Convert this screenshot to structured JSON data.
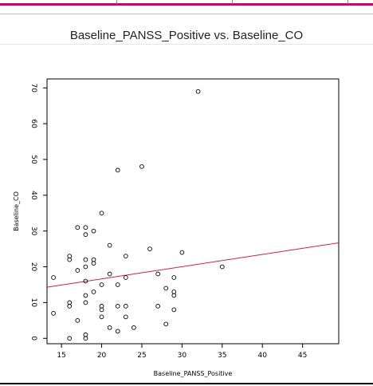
{
  "page": {
    "title": "Baseline_PANSS_Positive vs. Baseline_CO",
    "accent_color": "#cc0077"
  },
  "chart_data": {
    "type": "scatter",
    "title": "",
    "xlabel": "Baseline_PANSS_Positive",
    "ylabel": "Baseline_CO",
    "xlim": [
      13.2,
      49.5
    ],
    "ylim": [
      -1.5,
      72.5
    ],
    "x_ticks": [
      15,
      20,
      25,
      30,
      35,
      40,
      45
    ],
    "y_ticks": [
      0,
      10,
      20,
      30,
      40,
      50,
      60,
      70
    ],
    "grid": false,
    "point_color": "#000000",
    "fit_line_color": "#cc2244",
    "fit_line": {
      "x": [
        13.2,
        49.5
      ],
      "y": [
        14.3,
        26.7
      ]
    },
    "points": [
      {
        "x": 14,
        "y": 17
      },
      {
        "x": 14,
        "y": 7
      },
      {
        "x": 16,
        "y": 0
      },
      {
        "x": 16,
        "y": 9
      },
      {
        "x": 16,
        "y": 10
      },
      {
        "x": 16,
        "y": 22
      },
      {
        "x": 16,
        "y": 23
      },
      {
        "x": 17,
        "y": 5
      },
      {
        "x": 17,
        "y": 19
      },
      {
        "x": 17,
        "y": 31
      },
      {
        "x": 18,
        "y": 0
      },
      {
        "x": 18,
        "y": 1
      },
      {
        "x": 18,
        "y": 10
      },
      {
        "x": 18,
        "y": 12
      },
      {
        "x": 18,
        "y": 16
      },
      {
        "x": 18,
        "y": 20
      },
      {
        "x": 18,
        "y": 22
      },
      {
        "x": 18,
        "y": 29
      },
      {
        "x": 18,
        "y": 31
      },
      {
        "x": 19,
        "y": 13
      },
      {
        "x": 19,
        "y": 21
      },
      {
        "x": 19,
        "y": 22
      },
      {
        "x": 19,
        "y": 30
      },
      {
        "x": 20,
        "y": 6
      },
      {
        "x": 20,
        "y": 8
      },
      {
        "x": 20,
        "y": 9
      },
      {
        "x": 20,
        "y": 15
      },
      {
        "x": 20,
        "y": 35
      },
      {
        "x": 21,
        "y": 3
      },
      {
        "x": 21,
        "y": 18
      },
      {
        "x": 21,
        "y": 26
      },
      {
        "x": 22,
        "y": 2
      },
      {
        "x": 22,
        "y": 9
      },
      {
        "x": 22,
        "y": 15
      },
      {
        "x": 22,
        "y": 47
      },
      {
        "x": 23,
        "y": 6
      },
      {
        "x": 23,
        "y": 9
      },
      {
        "x": 23,
        "y": 17
      },
      {
        "x": 23,
        "y": 23
      },
      {
        "x": 24,
        "y": 3
      },
      {
        "x": 25,
        "y": 48
      },
      {
        "x": 26,
        "y": 25
      },
      {
        "x": 27,
        "y": 9
      },
      {
        "x": 27,
        "y": 18
      },
      {
        "x": 28,
        "y": 4
      },
      {
        "x": 28,
        "y": 14
      },
      {
        "x": 29,
        "y": 8
      },
      {
        "x": 29,
        "y": 12
      },
      {
        "x": 29,
        "y": 13
      },
      {
        "x": 29,
        "y": 17
      },
      {
        "x": 30,
        "y": 24
      },
      {
        "x": 32,
        "y": 69
      },
      {
        "x": 35,
        "y": 20
      }
    ]
  }
}
